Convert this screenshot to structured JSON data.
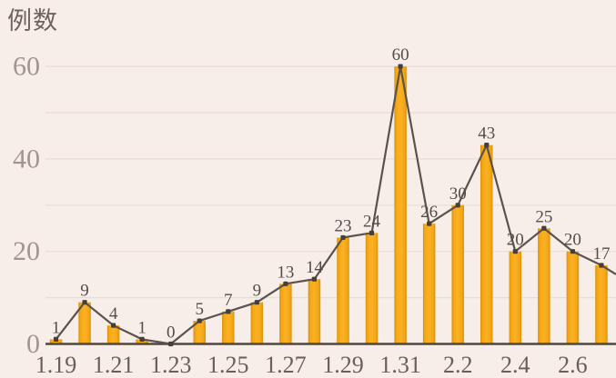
{
  "title": "例数",
  "chart_data": {
    "type": "bar",
    "overlay": "line",
    "title": "",
    "ylabel": "例数",
    "xlabel": "",
    "values": [
      1,
      9,
      4,
      1,
      0,
      5,
      7,
      9,
      13,
      14,
      23,
      24,
      60,
      26,
      30,
      43,
      20,
      25,
      20,
      17
    ],
    "data_labels": [
      "1",
      "9",
      "4",
      "1",
      "0",
      "5",
      "7",
      "9",
      "13",
      "14",
      "23",
      "24",
      "60",
      "26",
      "30",
      "43",
      "20",
      "25",
      "20",
      "17"
    ],
    "x_tick_labels": [
      "1.19",
      "1.21",
      "1.23",
      "1.25",
      "1.27",
      "1.29",
      "1.31",
      "2.2",
      "2.4",
      "2.6"
    ],
    "x_label_every": 2,
    "y_ticks": [
      0,
      20,
      40,
      60
    ],
    "ylim": [
      0,
      60
    ],
    "grid_step": 10,
    "grid": "horizontal",
    "legend": "none",
    "line_continues_past_right_edge": true
  },
  "colors": {
    "background": "#f7eeea",
    "gridline": "#e8dcd6",
    "axis": "#50473e",
    "bar_center": "#fbb124",
    "bar_main": "#f6a815",
    "bar_edge": "#d8920f",
    "line": "#5b5249",
    "marker": "#463f39",
    "y_tick_text": "#a0958f",
    "x_tick_text": "#6a5f58",
    "data_label_text": "#534d47",
    "title_text": "#6f645c"
  }
}
